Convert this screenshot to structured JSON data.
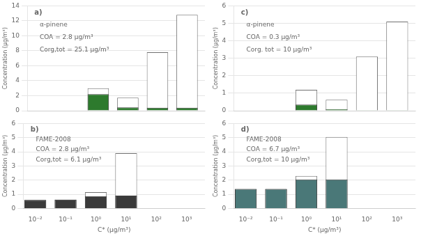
{
  "chart_data": [
    {
      "type": "bar",
      "annotations": [
        "a)",
        "α-pinene",
        "COA = 2.8 μg/m³",
        "Corg,tot = 25.1 μg/m³"
      ],
      "x": [
        0.01,
        0.1,
        1,
        10,
        100,
        1000
      ],
      "series": [
        {
          "color": "#ffffff",
          "values": [
            0,
            0,
            3.0,
            1.75,
            7.8,
            12.8
          ]
        },
        {
          "color": "#2d7a2d",
          "values": [
            0,
            0,
            2.2,
            0.45,
            0.4,
            0.4
          ]
        }
      ],
      "log": "x",
      "xlim": [
        0.004,
        4000
      ],
      "xticks": [
        {
          "value": 0.01,
          "label": "10⁻²"
        },
        {
          "value": 0.1,
          "label": "10⁻¹"
        },
        {
          "value": 1,
          "label": "10⁰"
        },
        {
          "value": 10,
          "label": "10¹"
        },
        {
          "value": 100,
          "label": "10²"
        },
        {
          "value": 1000,
          "label": "10³"
        }
      ],
      "ylim": [
        0,
        14
      ],
      "yticks": [
        0,
        2,
        4,
        6,
        8,
        10,
        12,
        14
      ],
      "ylabel": "Concentration (μg/m³)",
      "grid": true,
      "tick_labels": "y"
    },
    {
      "type": "bar",
      "annotations": [
        "b)",
        "FAME-2008",
        "COA = 2.8 μg/m³",
        "Corg,tot = 6.1 μg/m³"
      ],
      "x": [
        0.01,
        0.1,
        1,
        10,
        100,
        1000
      ],
      "series": [
        {
          "color": "#ffffff",
          "values": [
            0.6,
            0.62,
            1.15,
            3.9,
            0,
            0
          ]
        },
        {
          "color": "#3a3a3a",
          "values": [
            0.6,
            0.62,
            0.87,
            0.9,
            0,
            0
          ]
        }
      ],
      "log": "x",
      "xlim": [
        0.004,
        4000
      ],
      "xticks": [
        {
          "value": 0.01,
          "label": "10⁻²"
        },
        {
          "value": 0.1,
          "label": "10⁻¹"
        },
        {
          "value": 1,
          "label": "10⁰"
        },
        {
          "value": 10,
          "label": "10¹"
        },
        {
          "value": 100,
          "label": "10²"
        },
        {
          "value": 1000,
          "label": "10³"
        }
      ],
      "ylim": [
        0,
        6
      ],
      "yticks": [
        0,
        1,
        2,
        3,
        4,
        5,
        6
      ],
      "xlabel": "C* (μg/m³)",
      "ylabel": "Concentration (μg/m³)",
      "grid": true
    },
    {
      "type": "bar",
      "annotations": [
        "c)",
        "α-pinene",
        "COA = 0.3 μg/m³",
        "Corg. tot = 10 μg/m³"
      ],
      "x": [
        0.01,
        0.1,
        1,
        10,
        100,
        1000
      ],
      "series": [
        {
          "color": "#ffffff",
          "values": [
            0,
            0,
            1.2,
            0.63,
            3.1,
            5.1
          ]
        },
        {
          "color": "#2d7a2d",
          "values": [
            0,
            0,
            0.35,
            0.09,
            0.03,
            0.03
          ]
        }
      ],
      "log": "x",
      "xlim": [
        0.004,
        4000
      ],
      "xticks": [
        {
          "value": 0.01,
          "label": "10⁻²"
        },
        {
          "value": 0.1,
          "label": "10⁻¹"
        },
        {
          "value": 1,
          "label": "10⁰"
        },
        {
          "value": 10,
          "label": "10¹"
        },
        {
          "value": 100,
          "label": "10²"
        },
        {
          "value": 1000,
          "label": "10³"
        }
      ],
      "ylim": [
        0,
        6
      ],
      "yticks": [
        0,
        1,
        2,
        3,
        4,
        5,
        6
      ],
      "ylabel": "Concentration (μg/m³)",
      "grid": true,
      "tick_labels": "y"
    },
    {
      "type": "bar",
      "annotations": [
        "d)",
        "FAME-2008",
        "COA = 6.7 μg/m³",
        "Corg,tot = 10 μg/m³"
      ],
      "x": [
        0.01,
        0.1,
        1,
        10,
        100,
        1000
      ],
      "series": [
        {
          "color": "#ffffff",
          "values": [
            1.37,
            1.37,
            2.3,
            5.05,
            0,
            0
          ]
        },
        {
          "color": "#4a7878",
          "values": [
            1.37,
            1.37,
            2.05,
            2.05,
            0,
            0
          ]
        }
      ],
      "log": "x",
      "xlim": [
        0.004,
        4000
      ],
      "xticks": [
        {
          "value": 0.01,
          "label": "10⁻²"
        },
        {
          "value": 0.1,
          "label": "10⁻¹"
        },
        {
          "value": 1,
          "label": "10⁰"
        },
        {
          "value": 10,
          "label": "10¹"
        },
        {
          "value": 100,
          "label": "10²"
        },
        {
          "value": 1000,
          "label": "10³"
        }
      ],
      "ylim": [
        0,
        6
      ],
      "yticks": [
        0,
        1,
        2,
        3,
        4,
        5,
        6
      ],
      "xlabel": "C* (μg/m³)",
      "ylabel": "Concentration (μg/m³)",
      "grid": true
    }
  ]
}
